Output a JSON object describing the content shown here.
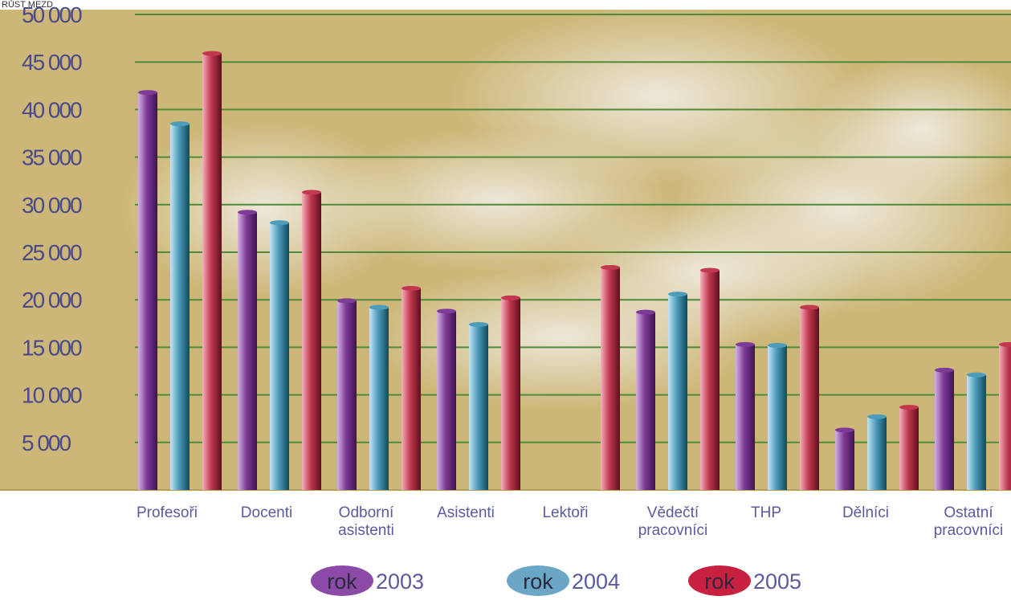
{
  "chart_data": {
    "type": "bar",
    "title": "RŮST MEZD",
    "ylim": [
      0,
      50000
    ],
    "yticks": [
      "5 000",
      "10 000",
      "15 000",
      "20 000",
      "25 000",
      "30 000",
      "35 000",
      "40 000",
      "45 000",
      "50 000"
    ],
    "grid": true,
    "categories": [
      [
        "Profesoři"
      ],
      [
        "Docenti"
      ],
      [
        "Odborní",
        "asistenti"
      ],
      [
        "Asistenti"
      ],
      [
        "Lektoři"
      ],
      [
        "Vědečtí",
        "pracovníci"
      ],
      [
        "THP"
      ],
      [
        "Dělníci"
      ],
      [
        "Ostatní",
        "pracovníci"
      ]
    ],
    "series": [
      {
        "name": "2003",
        "values": [
          41800,
          29200,
          19900,
          18800,
          null,
          18700,
          15300,
          6300,
          12600
        ]
      },
      {
        "name": "2004",
        "values": [
          38500,
          28100,
          19200,
          17400,
          null,
          20600,
          15200,
          7700,
          12100
        ]
      },
      {
        "name": "2005",
        "values": [
          45900,
          31300,
          21200,
          20200,
          23400,
          23100,
          19200,
          8700,
          15300
        ]
      }
    ],
    "legend": {
      "position": "bottom-center",
      "prefix": "rok",
      "items": [
        "2003",
        "2004",
        "2005"
      ]
    }
  },
  "colors": {
    "background": "#cdb778",
    "gridline": "#4f8a3a",
    "series_2003": [
      "#d3b4e0",
      "#7d3a97",
      "#3e1252"
    ],
    "series_2004": [
      "#c6e6f2",
      "#4d9cba",
      "#10485e"
    ],
    "series_2005": [
      "#f4b3bf",
      "#c2384f",
      "#5e0f1d"
    ],
    "legend_2003": "#8b4aa8",
    "legend_2004": "#6aa6c6",
    "legend_2005": "#c8203f"
  }
}
